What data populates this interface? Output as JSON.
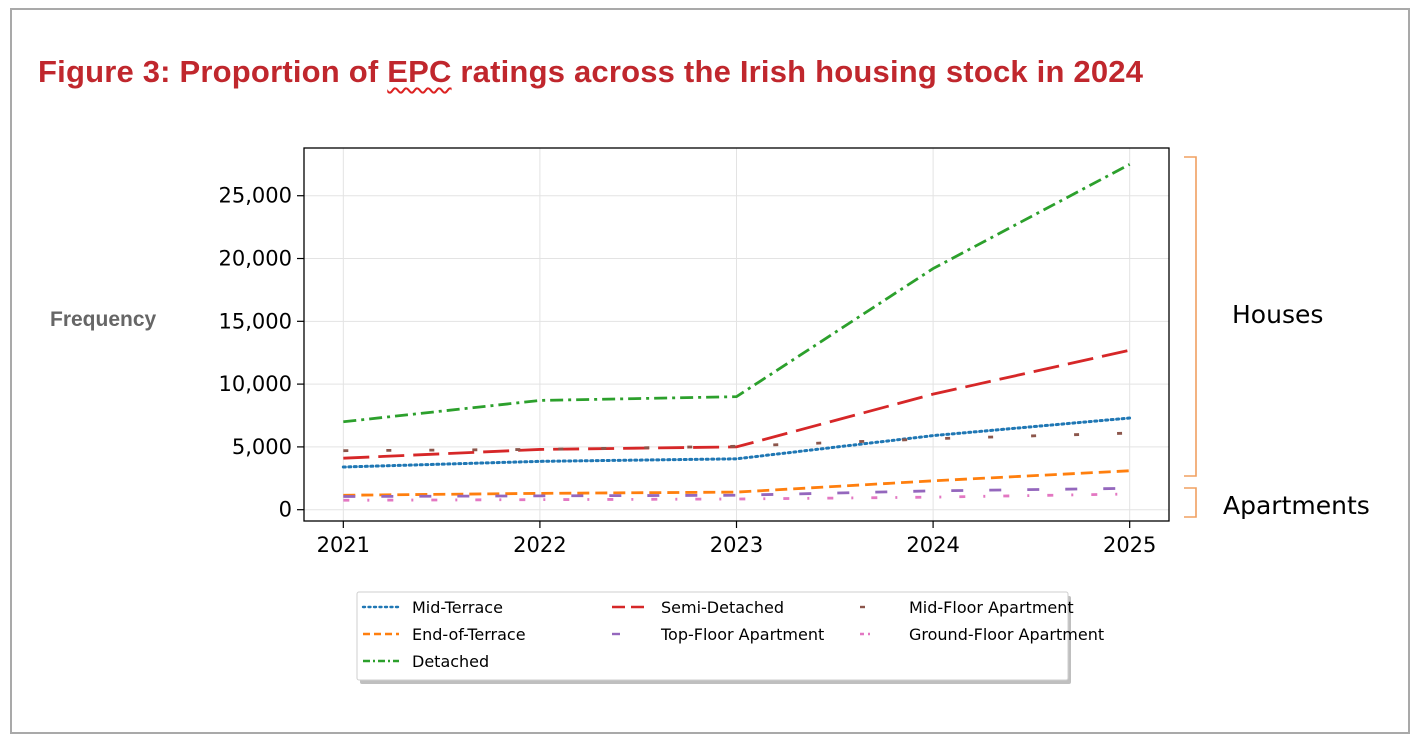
{
  "title": "Figure 3: Proportion of EPC ratings across the Irish housing stock in 2024",
  "title_parts": {
    "before": "Figure 3: Proportion of ",
    "squiggled": "EPC",
    "after": " ratings across the Irish housing stock in 2024"
  },
  "ylabel": "Frequency",
  "group_labels": {
    "houses": "Houses",
    "apartments": "Apartments"
  },
  "colors": {
    "title": "#c0272d",
    "bracket": "#f0a060"
  },
  "chart_data": {
    "type": "line",
    "title": "Figure 3: Proportion of EPC ratings across the Irish housing stock in 2024",
    "xlabel": "",
    "ylabel": "Frequency",
    "x": [
      2021,
      2022,
      2023,
      2024,
      2025
    ],
    "xlim": [
      2020.8,
      2025.2
    ],
    "ylim": [
      -900,
      28800
    ],
    "yticks": [
      0,
      5000,
      10000,
      15000,
      20000,
      25000
    ],
    "ytick_labels": [
      "0",
      "5,000",
      "10,000",
      "15,000",
      "20,000",
      "25,000"
    ],
    "xtick_labels": [
      "2021",
      "2022",
      "2023",
      "2024",
      "2025"
    ],
    "grid": true,
    "legend_position": "bottom-center",
    "series": [
      {
        "name": "Mid-Terrace",
        "color": "#1f77b4",
        "style": "dotted",
        "values": [
          3400,
          3850,
          4050,
          5900,
          7300
        ]
      },
      {
        "name": "Semi-Detached",
        "color": "#d62728",
        "style": "long-dash",
        "values": [
          4100,
          4800,
          5000,
          9200,
          12700
        ]
      },
      {
        "name": "Mid-Floor Apartment",
        "color": "#8c564b",
        "style": "sparse-dash",
        "values": [
          4700,
          4800,
          5050,
          5650,
          6100
        ]
      },
      {
        "name": "End-of-Terrace",
        "color": "#ff7f0e",
        "style": "dashed",
        "values": [
          1150,
          1300,
          1400,
          2300,
          3100
        ]
      },
      {
        "name": "Top-Floor Apartment",
        "color": "#9467bd",
        "style": "spaced-dash",
        "values": [
          1050,
          1100,
          1150,
          1500,
          1700
        ]
      },
      {
        "name": "Ground-Floor Apartment",
        "color": "#e377c2",
        "style": "dash-dot-sparse",
        "values": [
          750,
          800,
          850,
          1000,
          1250
        ]
      },
      {
        "name": "Detached",
        "color": "#2ca02c",
        "style": "dash-dot",
        "values": [
          7000,
          8700,
          9000,
          19200,
          27500
        ]
      }
    ],
    "legend_order": [
      "Mid-Terrace",
      "Semi-Detached",
      "Mid-Floor Apartment",
      "End-of-Terrace",
      "Top-Floor Apartment",
      "Ground-Floor Apartment",
      "Detached"
    ]
  }
}
